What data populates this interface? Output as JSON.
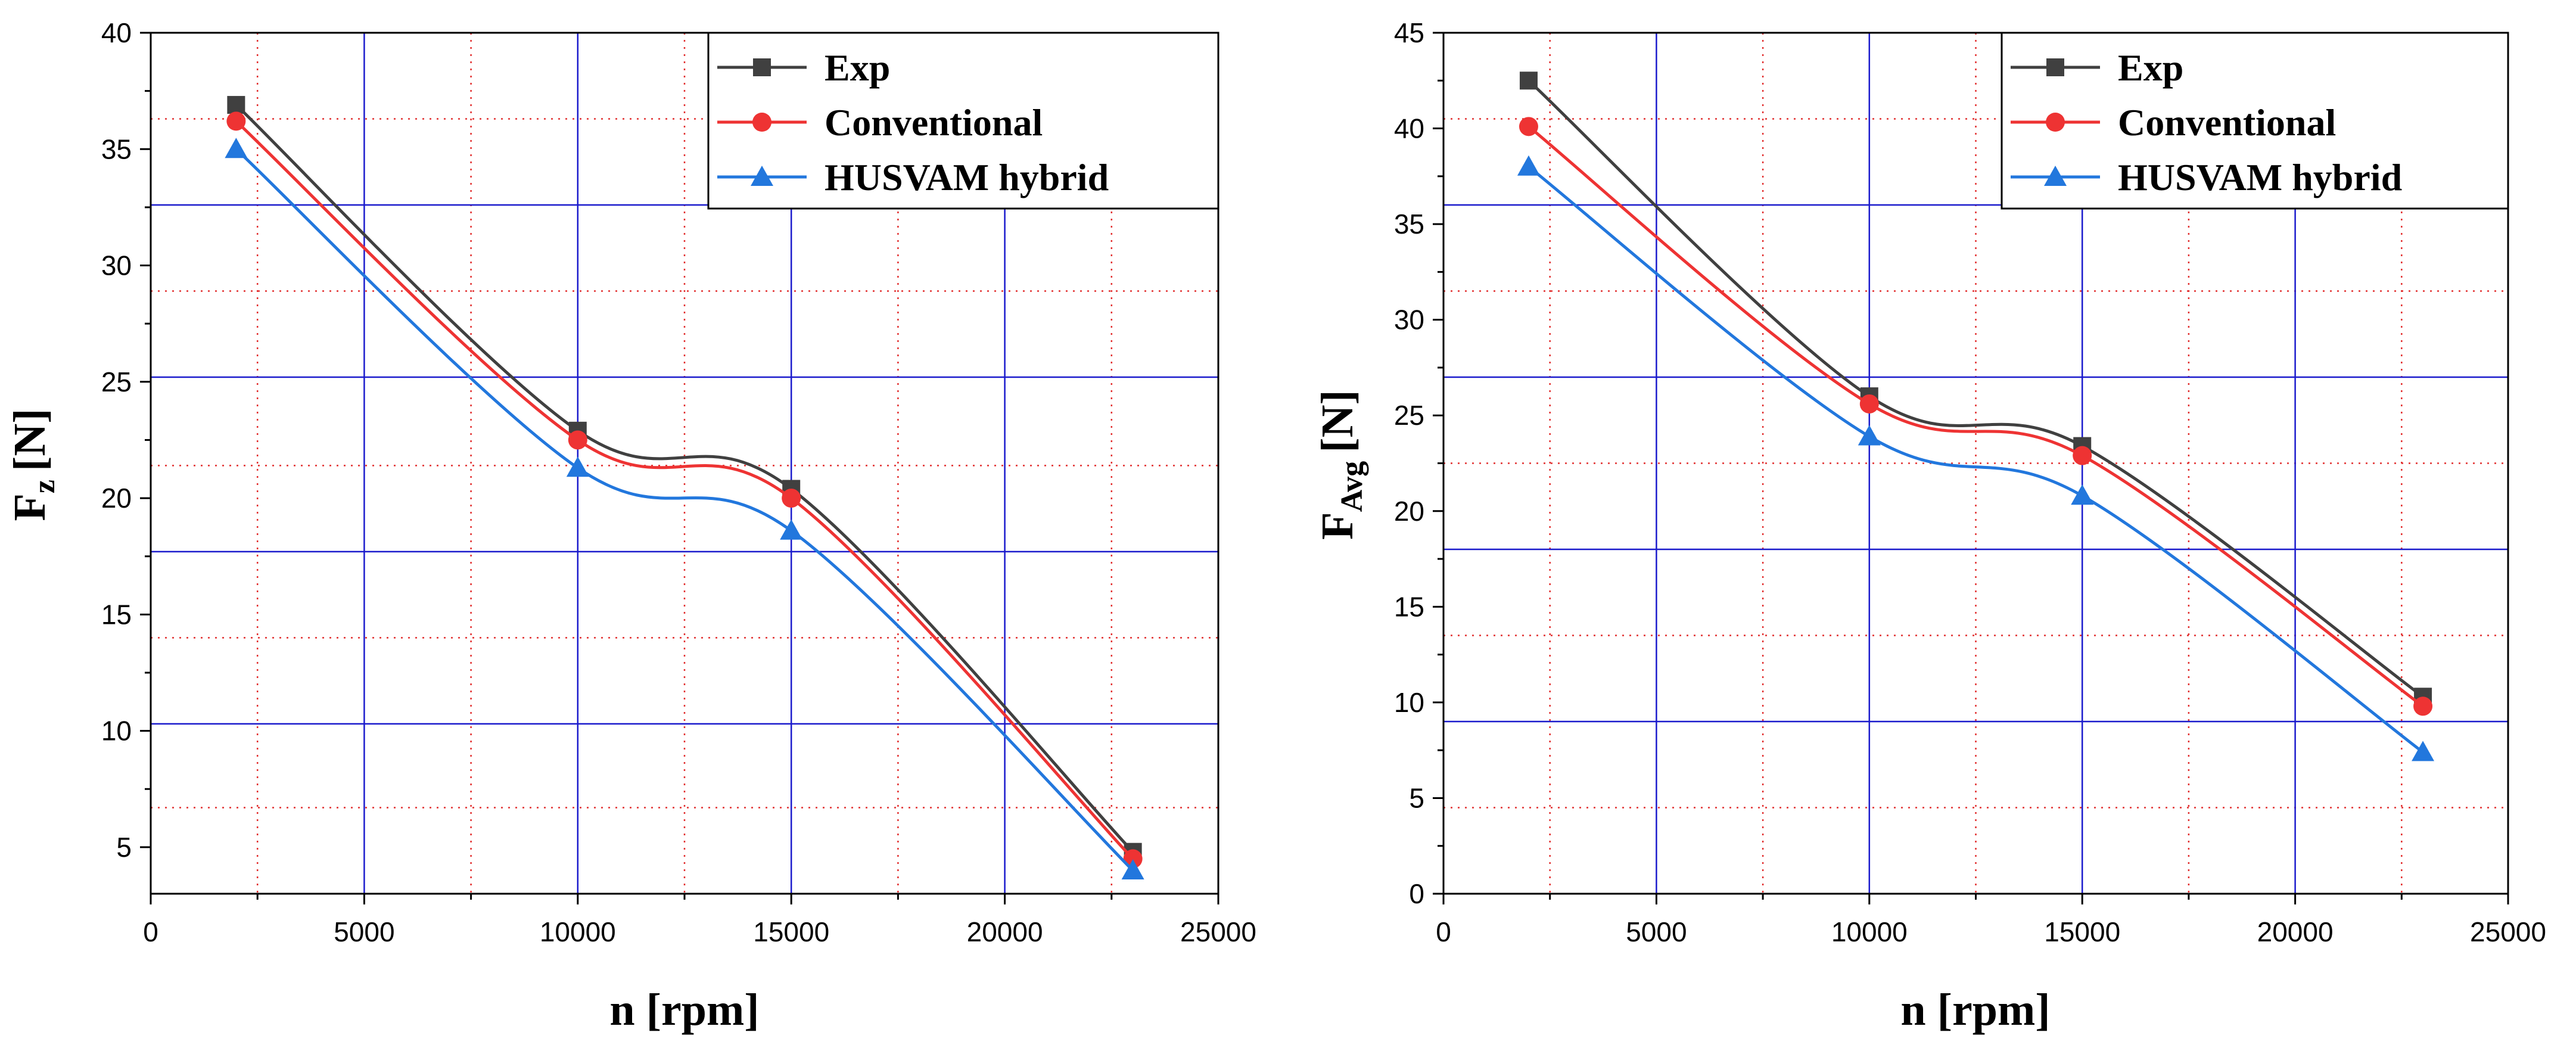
{
  "chart_data": [
    {
      "type": "line",
      "name": "left",
      "xlabel": "n [rpm]",
      "ylabel_main": "F",
      "ylabel_sub": "z",
      "ylabel_unit": "[N]",
      "xlim": [
        0,
        25000
      ],
      "ylim": [
        3,
        40
      ],
      "xticks": [
        0,
        5000,
        10000,
        15000,
        20000,
        25000
      ],
      "yticks": [
        5,
        10,
        15,
        20,
        25,
        30,
        35,
        40
      ],
      "x": [
        2000,
        10000,
        15000,
        23000
      ],
      "series": [
        {
          "name": "Exp",
          "color": "#404040",
          "marker": "square",
          "values": [
            36.9,
            22.9,
            20.4,
            4.8
          ]
        },
        {
          "name": "Conventional",
          "color": "#ee3333",
          "marker": "circle",
          "values": [
            36.2,
            22.5,
            20.0,
            4.5
          ]
        },
        {
          "name": "HUSVAM hybrid",
          "color": "#2277dd",
          "marker": "triangle",
          "values": [
            35.0,
            21.3,
            18.6,
            4.0
          ]
        }
      ],
      "legend_position": "top-right",
      "major_grid_x": [
        5000,
        10000,
        15000,
        20000
      ],
      "major_grid_y": [
        10.3,
        17.7,
        25.2,
        32.6
      ],
      "minor_grid_x": [
        2500,
        7500,
        12500,
        17500,
        22500
      ],
      "minor_grid_y": [
        6.7,
        14.0,
        21.4,
        28.9,
        36.3
      ]
    },
    {
      "type": "line",
      "name": "right",
      "xlabel": "n [rpm]",
      "ylabel_main": "F",
      "ylabel_sub": "Avg",
      "ylabel_unit": "[N]",
      "xlim": [
        0,
        25000
      ],
      "ylim": [
        0,
        45
      ],
      "xticks": [
        0,
        5000,
        10000,
        15000,
        20000,
        25000
      ],
      "yticks": [
        0,
        5,
        10,
        15,
        20,
        25,
        30,
        35,
        40,
        45
      ],
      "x": [
        2000,
        10000,
        15000,
        23000
      ],
      "series": [
        {
          "name": "Exp",
          "color": "#404040",
          "marker": "square",
          "values": [
            42.5,
            26.0,
            23.4,
            10.3
          ]
        },
        {
          "name": "Conventional",
          "color": "#ee3333",
          "marker": "circle",
          "values": [
            40.1,
            25.6,
            22.9,
            9.8
          ]
        },
        {
          "name": "HUSVAM hybrid",
          "color": "#2277dd",
          "marker": "triangle",
          "values": [
            38.0,
            23.9,
            20.8,
            7.4
          ]
        }
      ],
      "legend_position": "top-right",
      "major_grid_x": [
        5000,
        10000,
        15000,
        20000
      ],
      "major_grid_y": [
        9.0,
        18.0,
        27.0,
        36.0
      ],
      "minor_grid_x": [
        2500,
        7500,
        12500,
        17500,
        22500
      ],
      "minor_grid_y": [
        4.5,
        13.5,
        22.5,
        31.5,
        40.5
      ]
    }
  ]
}
